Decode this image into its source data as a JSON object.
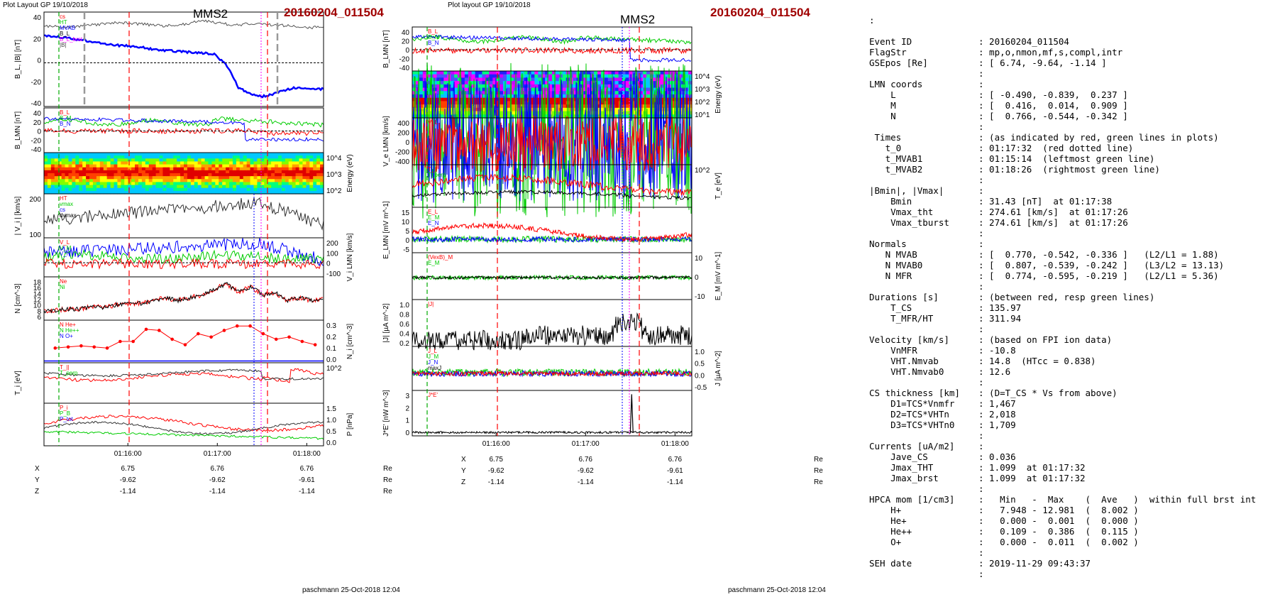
{
  "left": {
    "header": "Plot Layout GP 19/10/2018",
    "title": "MMS2",
    "event": "20160204_011504",
    "footer": "paschmann 25-Oct-2018 12:04",
    "time_ticks": [
      "01:16:00",
      "01:17:00",
      "01:18:00"
    ],
    "panels": [
      {
        "ylabel": "B_L, |B| [nT]",
        "yticks": [
          "40",
          "20",
          "0",
          "-20",
          "-40"
        ],
        "legend": [
          "cs",
          "HT",
          "MVAB",
          "B_L",
          "B_L_brst",
          "|B|"
        ]
      },
      {
        "ylabel": "B_LMN [nT]",
        "yticks": [
          "40",
          "20",
          "0",
          "-20",
          "-40"
        ],
        "legend": [
          "B_L",
          "B_M",
          "B_N"
        ]
      },
      {
        "ylabel": "Energy (eV)",
        "yticks": [
          "10^4",
          "10^3",
          "10^2"
        ],
        "legend": []
      },
      {
        "ylabel": "| V_i | [km/s]",
        "yticks": [
          "200",
          "100"
        ],
        "legend": [
          "HT",
          "vmax",
          "cs",
          "dvmax"
        ]
      },
      {
        "ylabel": "V_i LMN [km/s]",
        "yticks": [
          "200",
          "100",
          "0",
          "-100"
        ],
        "legend": [
          "V_L",
          "V_M",
          "V_N"
        ]
      },
      {
        "ylabel": "N [cm^-3]",
        "yticks": [
          "18",
          "16",
          "14",
          "12",
          "10",
          "8",
          "6"
        ],
        "legend": [
          "Ne",
          "Ni"
        ]
      },
      {
        "ylabel": "N_i [cm^-3]",
        "yticks": [
          "0.3",
          "0.2",
          "0.1",
          "0.0"
        ],
        "legend": [
          "N He+",
          "N He++",
          "N O+"
        ]
      },
      {
        "ylabel": "T_i [eV]",
        "yticks": [
          "10^2"
        ],
        "legend": [
          "T_||",
          "T_perp"
        ]
      },
      {
        "ylabel": "P [nPa]",
        "yticks": [
          "1.5",
          "1.0",
          "0.5",
          "0.0"
        ],
        "legend": [
          "P_i",
          "P_B",
          "P_tot"
        ]
      }
    ],
    "positions": {
      "labels": [
        "X",
        "Y",
        "Z"
      ],
      "values": [
        [
          "6.75",
          "6.76",
          "6.76"
        ],
        [
          "-9.62",
          "-9.62",
          "-9.61"
        ],
        [
          "-1.14",
          "-1.14",
          "-1.14"
        ]
      ],
      "unit": "Re"
    }
  },
  "middle": {
    "header": "Plot layout GP 19/10/2018",
    "title": "MMS2",
    "event": "20160204_011504",
    "footer": "paschmann 25-Oct-2018 12:04",
    "time_ticks": [
      "01:16:00",
      "01:17:00",
      "01:18:00"
    ],
    "panels": [
      {
        "ylabel": "B_LMN [nT]",
        "yticks": [
          "40",
          "20",
          "0",
          "-20",
          "-40"
        ],
        "legend": [
          "B_L",
          "B_M",
          "B_N"
        ]
      },
      {
        "ylabel": "Energy (eV)",
        "yticks": [
          "10^4",
          "10^3",
          "10^2",
          "10^1"
        ],
        "legend": []
      },
      {
        "ylabel": "V_e LMN [km/s]",
        "yticks": [
          "400",
          "200",
          "0",
          "-200",
          "-400"
        ],
        "legend": [
          "V_L"
        ]
      },
      {
        "ylabel": "T_e [eV]",
        "yticks": [
          "10^2"
        ],
        "legend": [
          "T_||",
          "T_perp"
        ]
      },
      {
        "ylabel": "E_LMN [mV m^-1]",
        "yticks": [
          "15",
          "10",
          "5",
          "0",
          "-5"
        ],
        "legend": [
          "E_L",
          "E_M",
          "E_N"
        ]
      },
      {
        "ylabel": "E_M [mV m^-1]",
        "yticks": [
          "10",
          "0",
          "-10"
        ],
        "legend": [
          "(VexB)_M",
          "E_M"
        ]
      },
      {
        "ylabel": "|J| [µA m^-2]",
        "yticks": [
          "1.0",
          "0.8",
          "0.6",
          "0.4",
          "0.2"
        ],
        "legend": [
          "|J|"
        ]
      },
      {
        "ylabel": "J [µA m^-2]",
        "yticks": [
          "1.0",
          "0.5",
          "0.0",
          "-0.5"
        ],
        "legend": [
          "J_L",
          "J_M",
          "J_N",
          "maxJ"
        ]
      },
      {
        "ylabel": "J*E' [nW m^-3]",
        "yticks": [
          "3",
          "2",
          "1",
          "0"
        ],
        "legend": [
          "J*E'"
        ]
      }
    ],
    "positions": {
      "labels": [
        "X",
        "Y",
        "Z"
      ],
      "values": [
        [
          "6.75",
          "6.76",
          "6.76"
        ],
        [
          "-9.62",
          "-9.62",
          "-9.61"
        ],
        [
          "-1.14",
          "-1.14",
          "-1.14"
        ]
      ],
      "unit": "Re"
    }
  },
  "info": {
    "colon_top": ":",
    "lines": [
      [
        "Event ID",
        ": 20160204_011504"
      ],
      [
        "FlagStr",
        ": mp,o,nmon,mf,s,compl,intr"
      ],
      [
        "GSEpos [Re]",
        ": [ 6.74, -9.64, -1.14 ]"
      ],
      [
        "",
        ":"
      ],
      [
        "LMN coords",
        ":"
      ],
      [
        "    L",
        ": [ -0.490, -0.839,  0.237 ]"
      ],
      [
        "    M",
        ": [  0.416,  0.014,  0.909 ]"
      ],
      [
        "    N",
        ": [  0.766, -0.544, -0.342 ]"
      ],
      [
        "",
        ":"
      ],
      [
        " Times",
        ": (as indicated by red, green lines in plots)"
      ],
      [
        "   t_0",
        ": 01:17:32  (red dotted line)"
      ],
      [
        "   t_MVAB1",
        ": 01:15:14  (leftmost green line)"
      ],
      [
        "   t_MVAB2",
        ": 01:18:26  (rightmost green line)"
      ],
      [
        "",
        ":"
      ],
      [
        "|Bmin|, |Vmax|",
        ":"
      ],
      [
        "    Bmin",
        ": 31.43 [nT]  at 01:17:38"
      ],
      [
        "    Vmax_tht",
        ": 274.61 [km/s]  at 01:17:26"
      ],
      [
        "    Vmax_tburst",
        ": 274.61 [km/s]  at 01:17:26"
      ],
      [
        "",
        ":"
      ],
      [
        "Normals",
        ":"
      ],
      [
        "   N MVAB",
        ": [  0.770, -0.542, -0.336 ]   (L2/L1 = 1.88)"
      ],
      [
        "   N MVAB0",
        ": [  0.807, -0.539, -0.242 ]   (L3/L2 = 13.13)"
      ],
      [
        "   N MFR",
        ": [  0.774, -0.595, -0.219 ]   (L2/L1 = 5.36)"
      ],
      [
        "",
        ":"
      ],
      [
        "Durations [s]",
        ": (between red, resp green lines)"
      ],
      [
        "    T_CS",
        ": 135.97"
      ],
      [
        "    T_MFR/HT",
        ": 311.94"
      ],
      [
        "",
        ":"
      ],
      [
        "Velocity [km/s]",
        ": (based on FPI ion data)"
      ],
      [
        "    VnMFR",
        ": -10.8"
      ],
      [
        "    VHT.Nmvab",
        ": 14.8  (HTcc = 0.838)"
      ],
      [
        "    VHT.Nmvab0",
        ": 12.6"
      ],
      [
        "",
        ":"
      ],
      [
        "CS thickness [km]",
        ": (D=T_CS * Vs from above)"
      ],
      [
        "    D1=TCS*Vnmfr",
        ": 1,467"
      ],
      [
        "    D2=TCS*VHTn",
        ": 2,018"
      ],
      [
        "    D3=TCS*VHTn0",
        ": 1,709"
      ],
      [
        "",
        ":"
      ],
      [
        "Currents [uA/m2]",
        ":"
      ],
      [
        "    Jave_CS",
        ": 0.036"
      ],
      [
        "    Jmax_THT",
        ": 1.099  at 01:17:32"
      ],
      [
        "    Jmax_brst",
        ": 1.099  at 01:17:32"
      ],
      [
        "",
        ":"
      ],
      [
        "HPCA mom [1/cm3]",
        ":   Min   -  Max    (  Ave   )  within full brst int"
      ],
      [
        "    H+",
        ":   7.948 - 12.981  (  8.002 )"
      ],
      [
        "    He+",
        ":   0.000 -  0.001  (  0.000 )"
      ],
      [
        "    He++",
        ":   0.109 -  0.386  (  0.115 )"
      ],
      [
        "    O+",
        ":   0.000 -  0.011  (  0.002 )"
      ],
      [
        "",
        ":"
      ],
      [
        "SEH date",
        ": 2019-11-29 09:43:37"
      ],
      [
        "",
        ":"
      ]
    ]
  },
  "chart_data": [
    {
      "type": "line",
      "title": "MMS2  20160204_011504",
      "xlabel": "",
      "x_ticks": [
        "01:16:00",
        "01:17:00",
        "01:18:00"
      ],
      "series": [
        {
          "name": "|B|",
          "panel": "B_L, |B| [nT]",
          "values": [
            42,
            41,
            40,
            42,
            43,
            44,
            46,
            45,
            44,
            43,
            42,
            43,
            45,
            48,
            46,
            44,
            43,
            45,
            44,
            43,
            42,
            41,
            40,
            42
          ]
        },
        {
          "name": "B_L",
          "panel": "B_L, |B| [nT]",
          "values": [
            31,
            30,
            28,
            26,
            24,
            22,
            20,
            19,
            18,
            15,
            14,
            13,
            12,
            11,
            10,
            -2,
            -28,
            -36,
            -38,
            -35,
            -30,
            -28,
            -29,
            -30
          ]
        },
        {
          "name": "ion density",
          "panel": "N [cm^-3]",
          "values": [
            7,
            7.5,
            8,
            8,
            9,
            8.5,
            9.5,
            10,
            10,
            11,
            12,
            11,
            12,
            13,
            15,
            17,
            14,
            16,
            13,
            14,
            11,
            12,
            11,
            12
          ]
        },
        {
          "name": "N He++",
          "panel": "N_i [cm^-3]",
          "values": [
            0.12,
            0.13,
            0.14,
            0.13,
            0.12,
            0.18,
            0.18,
            0.29,
            0.28,
            0.2,
            0.15,
            0.25,
            0.22,
            0.28,
            0.32,
            0.32,
            0.25,
            0.2,
            0.22,
            0.18,
            0.15
          ]
        }
      ]
    }
  ]
}
